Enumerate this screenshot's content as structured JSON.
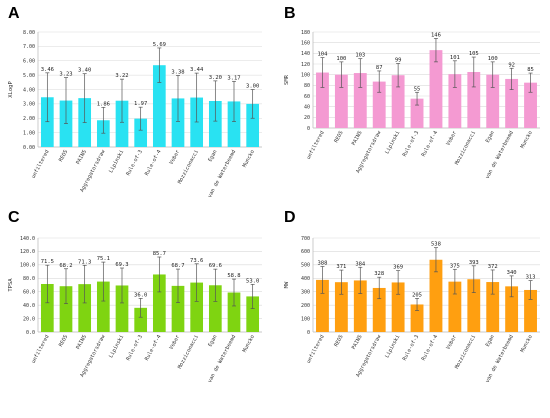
{
  "chart_data": [
    {
      "panel": "A",
      "type": "bar",
      "ylabel": "XLogP",
      "ylim": [
        0,
        8
      ],
      "yticks": [
        "0.00",
        "1.00",
        "2.00",
        "3.00",
        "4.00",
        "5.00",
        "6.00",
        "7.00",
        "8.00"
      ],
      "categories": [
        "unfiltered",
        "REOS",
        "PAINS",
        "Aggregatorsdraw",
        "Lipinski",
        "Rule-of-3",
        "Rule-of-4",
        "Veber",
        "Mozziconacci",
        "Egan",
        "van de Waterbeemd",
        "Muncko"
      ],
      "values": [
        3.46,
        3.23,
        3.4,
        1.86,
        3.22,
        1.97,
        5.69,
        3.38,
        3.44,
        3.2,
        3.17,
        3.0
      ],
      "labels": [
        "3.46",
        "3.23",
        "3.40",
        "1.86",
        "3.22",
        "1.97",
        "5.69",
        "3.38",
        "3.44",
        "3.20",
        "3.17",
        "3.00"
      ],
      "errors": [
        1.7,
        1.6,
        1.7,
        0.9,
        1.5,
        0.8,
        1.2,
        1.6,
        1.7,
        1.4,
        1.4,
        1.0
      ],
      "color": "#29e2f2",
      "grid": true
    },
    {
      "panel": "B",
      "type": "bar",
      "ylabel": "SMR",
      "ylim": [
        0,
        180
      ],
      "yticks": [
        "0",
        "20",
        "40",
        "60",
        "80",
        "100",
        "120",
        "140",
        "160",
        "180"
      ],
      "categories": [
        "unfiltered",
        "REOS",
        "PAINS",
        "Aggregatorsdraw",
        "Lipinski",
        "Rule-of-3",
        "Rule-of-4",
        "Veber",
        "Mozziconacci",
        "Egan",
        "van de Waterbeemd",
        "Muncko"
      ],
      "values": [
        104,
        100,
        103,
        87,
        99,
        55,
        146,
        101,
        105,
        100,
        92,
        85
      ],
      "labels": [
        "104",
        "100",
        "103",
        "87",
        "99",
        "55",
        "146",
        "101",
        "105",
        "100",
        "92",
        "85"
      ],
      "errors": [
        28,
        24,
        27,
        20,
        22,
        12,
        22,
        25,
        28,
        24,
        20,
        18
      ],
      "color": "#f49ad2",
      "grid": true
    },
    {
      "panel": "C",
      "type": "bar",
      "ylabel": "TPSA",
      "ylim": [
        0,
        140
      ],
      "yticks": [
        "0.0",
        "20.0",
        "40.0",
        "60.0",
        "80.0",
        "100.0",
        "120.0",
        "140.0"
      ],
      "categories": [
        "unfiltered",
        "REOS",
        "PAINS",
        "Aggregatorsdraw",
        "Lipinski",
        "Rule-of-3",
        "Rule-of-4",
        "Veber",
        "Mozziconacci",
        "Egan",
        "van de Waterbeemd",
        "Muncko"
      ],
      "values": [
        71.5,
        68.2,
        71.3,
        75.1,
        69.3,
        36.0,
        85.7,
        68.7,
        73.6,
        69.6,
        58.8,
        53.0
      ],
      "labels": [
        "71.5",
        "68.2",
        "71.3",
        "75.1",
        "69.3",
        "36.0",
        "85.7",
        "68.7",
        "73.6",
        "69.6",
        "58.8",
        "53.0"
      ],
      "errors": [
        28,
        26,
        28,
        29,
        26,
        14,
        26,
        25,
        28,
        24,
        20,
        18
      ],
      "color": "#7fd411",
      "grid": true
    },
    {
      "panel": "D",
      "type": "bar",
      "ylabel": "MW",
      "ylim": [
        0,
        700
      ],
      "yticks": [
        "0",
        "100",
        "200",
        "300",
        "400",
        "500",
        "600",
        "700"
      ],
      "categories": [
        "unfiltered",
        "REOS",
        "PAINS",
        "Aggregatorsdraw",
        "Lipinski",
        "Rule-of-3",
        "Rule-of-4",
        "Veber",
        "Mozziconacci",
        "Egan",
        "van de Waterbeemd",
        "Muncko"
      ],
      "values": [
        388,
        371,
        384,
        328,
        369,
        205,
        538,
        375,
        393,
        372,
        340,
        313
      ],
      "labels": [
        "388",
        "371",
        "384",
        "328",
        "369",
        "205",
        "538",
        "375",
        "393",
        "372",
        "340",
        "313"
      ],
      "errors": [
        100,
        90,
        98,
        80,
        88,
        45,
        90,
        92,
        100,
        90,
        78,
        70
      ],
      "color": "#ff9f10",
      "grid": true
    }
  ]
}
